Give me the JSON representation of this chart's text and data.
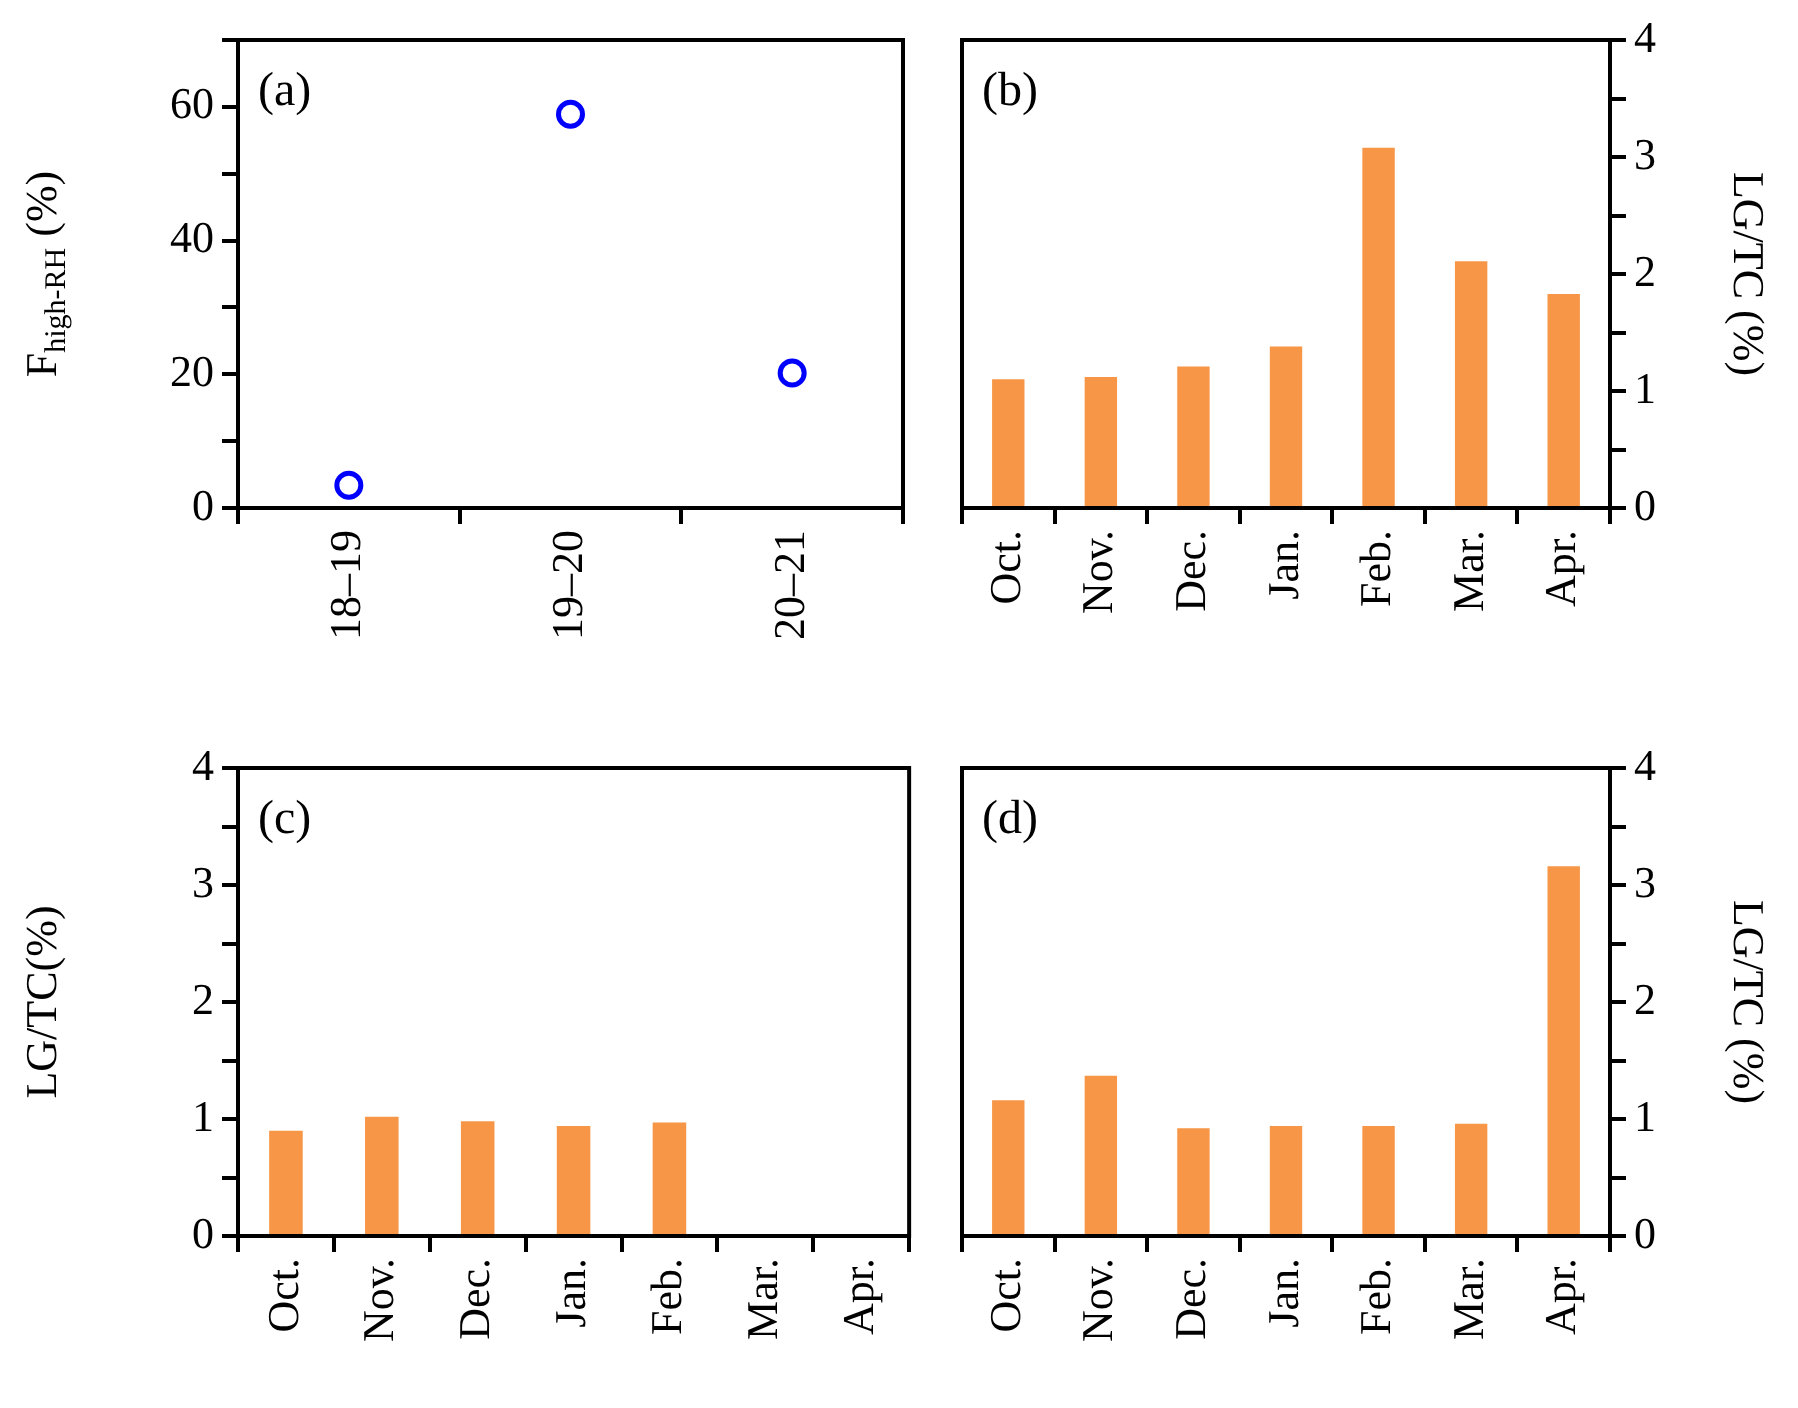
{
  "chart_data": [
    {
      "type": "scatter",
      "categories": [
        "18–19",
        "19–20",
        "20–21"
      ],
      "values": [
        3.4,
        58.9,
        20.2
      ],
      "color": "#0000ff",
      "marker": "circle",
      "ylabel": "F$_{high-RH}$ (%)",
      "ylim": [
        0,
        70
      ],
      "yticks": [
        0,
        {
          "value": 10,
          "label": null
        },
        20,
        {
          "value": 30,
          "label": null
        },
        40,
        {
          "value": 50,
          "label": null
        },
        60,
        {
          "value": 70,
          "label": null
        }
      ],
      "annotations": [
        "(a)"
      ]
    },
    {
      "type": "bar",
      "categories": [
        "Oct.",
        "Nov.",
        "Dec.",
        "Jan.",
        "Feb.",
        "Mar.",
        "Apr."
      ],
      "series": [
        {
          "color": "#f79646",
          "axis": "y2",
          "values": [
            1.1,
            1.12,
            1.21,
            1.38,
            3.08,
            2.11,
            1.83
          ]
        }
      ],
      "y2label": "LG/TC (%)",
      "y2lim": [
        0,
        4
      ],
      "y2ticks": [
        0,
        {
          "value": 0.5,
          "label": null
        },
        1,
        {
          "value": 1.5,
          "label": null
        },
        2,
        {
          "value": 2.5,
          "label": null
        },
        3,
        {
          "value": 3.5,
          "label": null
        },
        4
      ],
      "annotations": [
        "(b)"
      ]
    },
    {
      "type": "bar",
      "categories": [
        "Oct.",
        "Nov.",
        "Dec.",
        "Jan.",
        "Feb.",
        "Mar.",
        "Apr."
      ],
      "series": [
        {
          "color": "#f79646",
          "values": [
            0.9,
            1.02,
            0.98,
            0.94,
            0.97,
            null,
            null
          ]
        }
      ],
      "ylabel": "LG/TC(%)",
      "ylim": [
        0,
        4
      ],
      "yticks": [
        0,
        {
          "value": 0.5,
          "label": null
        },
        1,
        {
          "value": 1.5,
          "label": null
        },
        2,
        {
          "value": 2.5,
          "label": null
        },
        3,
        {
          "value": 3.5,
          "label": null
        },
        4
      ],
      "annotations": [
        "(c)"
      ]
    },
    {
      "type": "bar",
      "categories": [
        "Oct.",
        "Nov.",
        "Dec.",
        "Jan.",
        "Feb.",
        "Mar.",
        "Apr."
      ],
      "series": [
        {
          "color": "#f79646",
          "axis": "y2",
          "values": [
            1.16,
            1.37,
            0.92,
            0.94,
            0.94,
            0.96,
            3.16
          ]
        }
      ],
      "y2label": "LG/TC (%)",
      "y2lim": [
        0,
        4
      ],
      "y2ticks": [
        0,
        {
          "value": 0.5,
          "label": null
        },
        1,
        {
          "value": 1.5,
          "label": null
        },
        2,
        {
          "value": 2.5,
          "label": null
        },
        3,
        {
          "value": 3.5,
          "label": null
        },
        4
      ],
      "annotations": [
        "(d)"
      ]
    }
  ]
}
